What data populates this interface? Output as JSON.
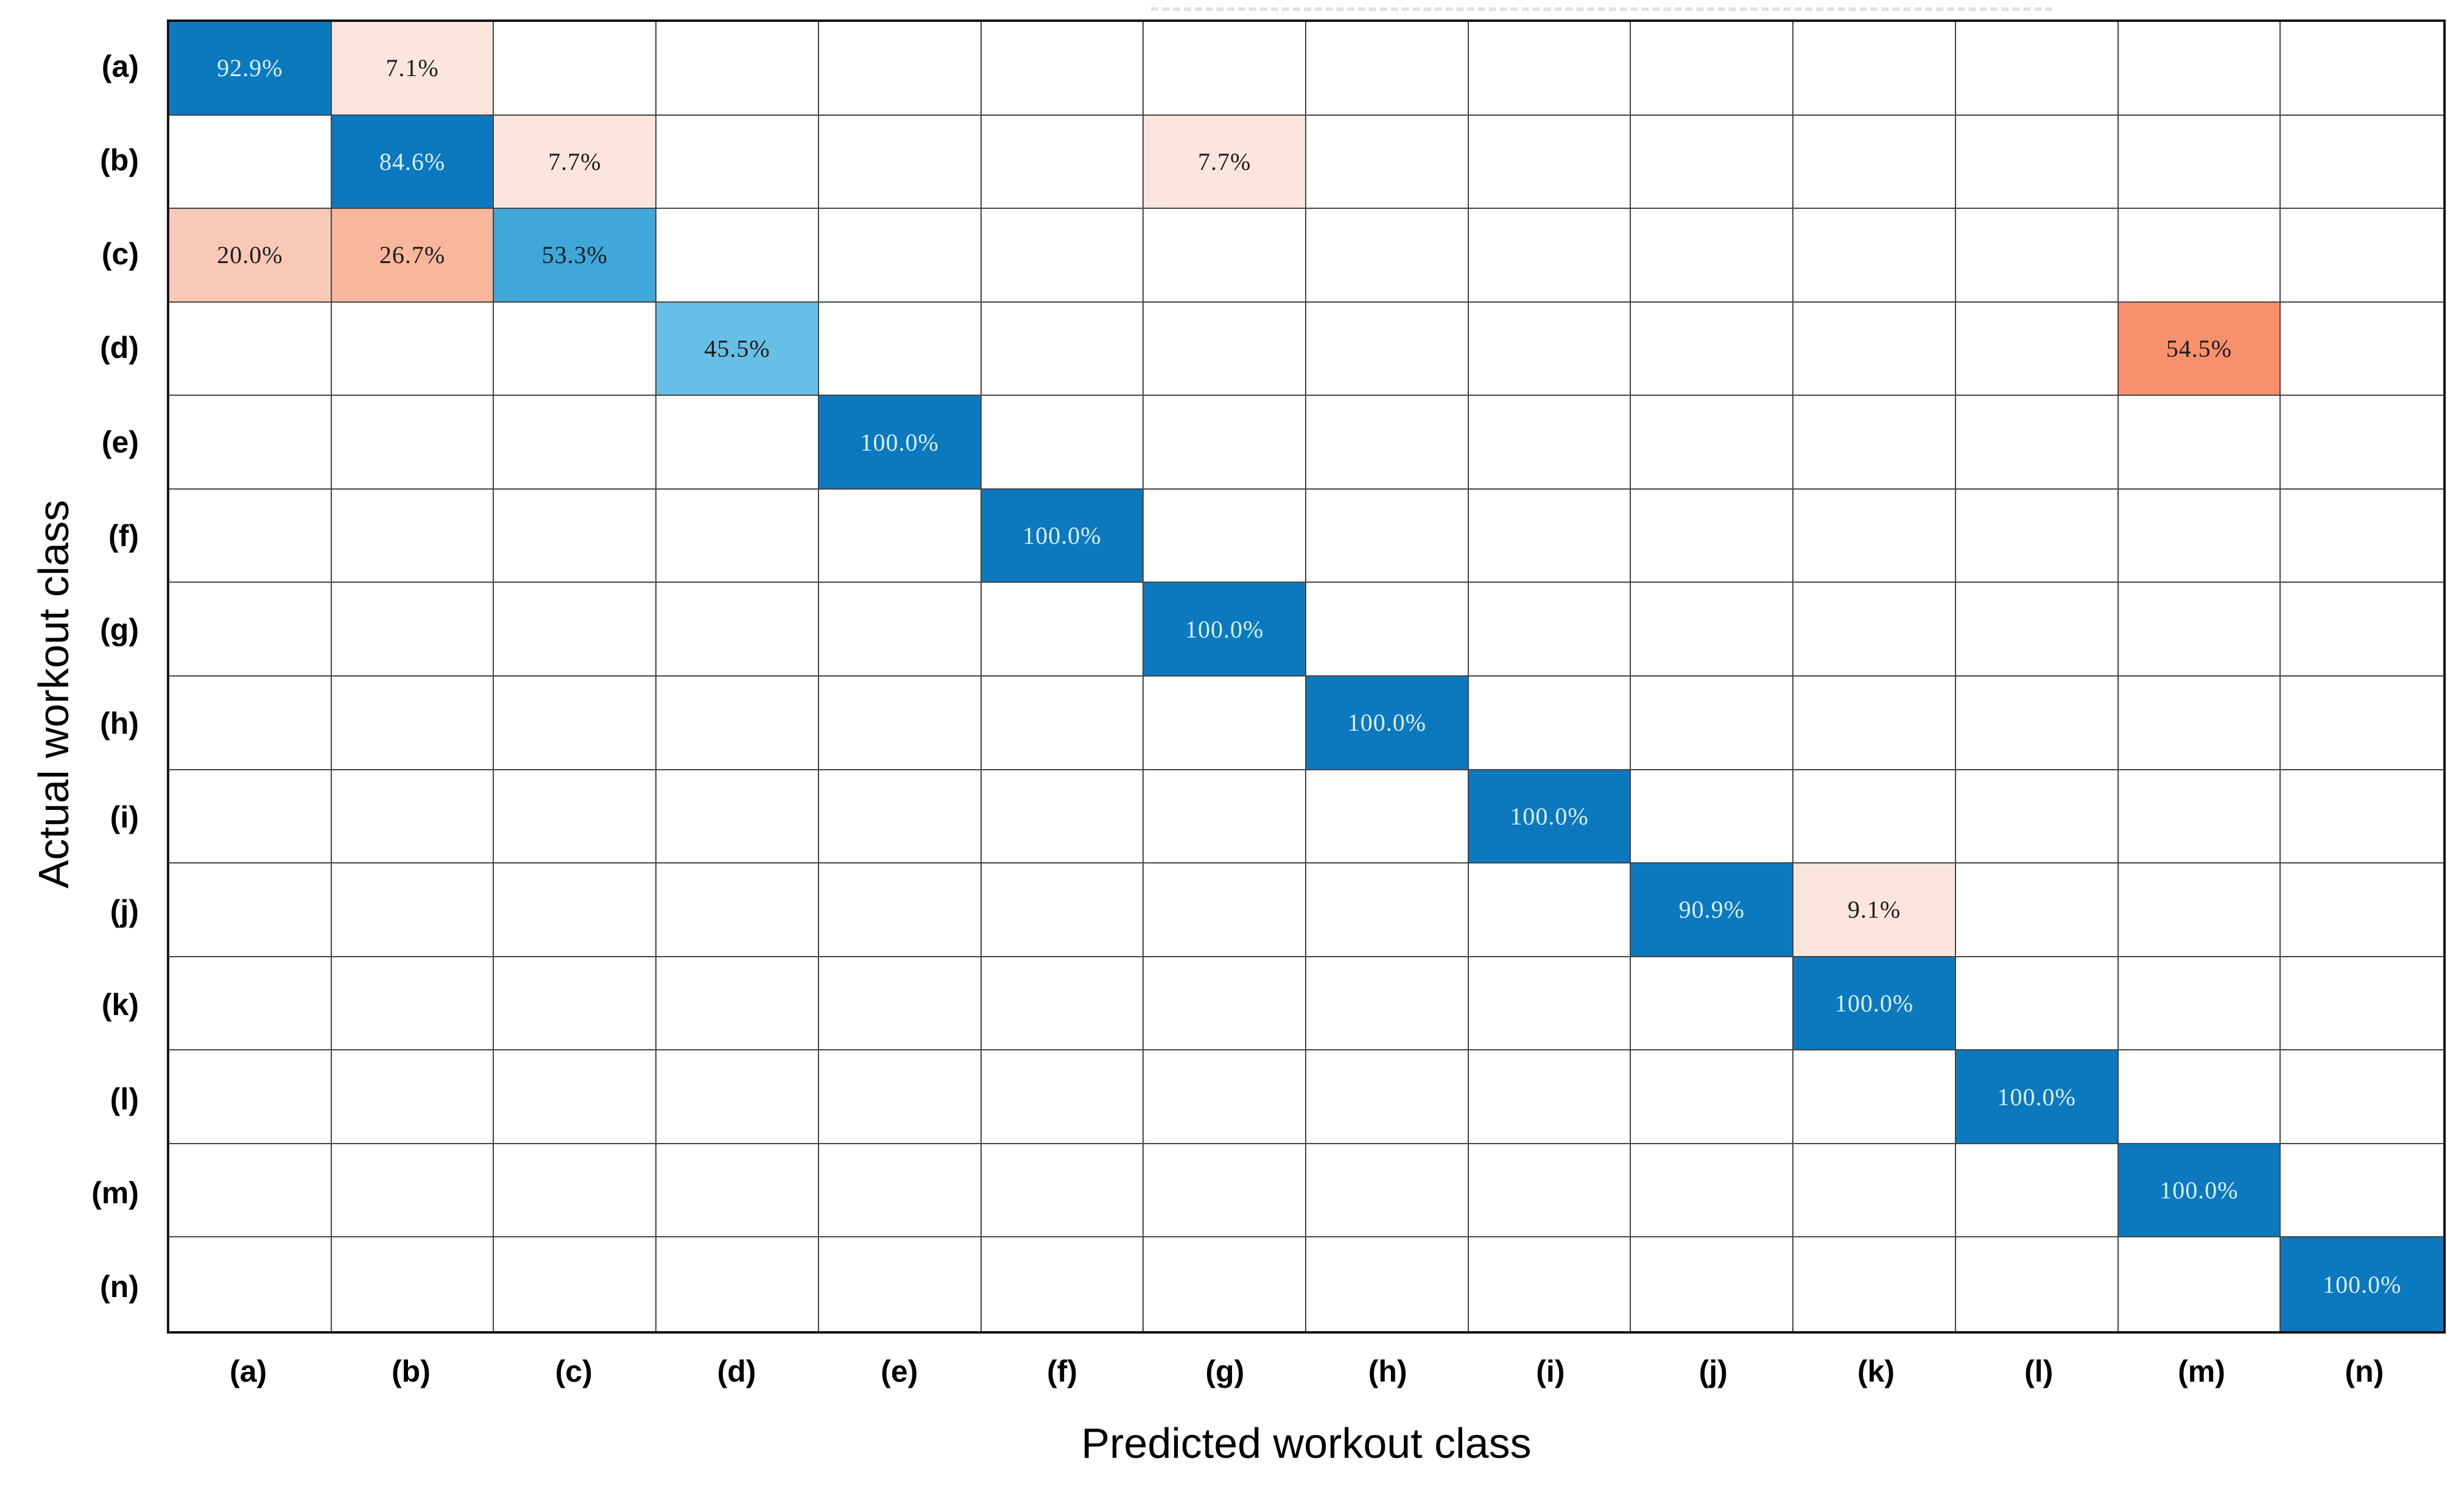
{
  "chart_data": {
    "type": "heatmap",
    "title": "",
    "xlabel": "Predicted workout class",
    "ylabel": "Actual workout class",
    "x_categories": [
      "(a)",
      "(b)",
      "(c)",
      "(d)",
      "(e)",
      "(f)",
      "(g)",
      "(h)",
      "(i)",
      "(j)",
      "(k)",
      "(l)",
      "(m)",
      "(n)"
    ],
    "y_categories": [
      "(a)",
      "(b)",
      "(c)",
      "(d)",
      "(e)",
      "(f)",
      "(g)",
      "(h)",
      "(i)",
      "(j)",
      "(k)",
      "(l)",
      "(m)",
      "(n)"
    ],
    "grid": {
      "rows": 14,
      "cols": 14,
      "grid_on": true
    },
    "value_unit": "%",
    "palette": {
      "diagonal_blue": "#0c79bf",
      "mid_blue": "#3fa7d9",
      "light_blue": "#66c0e5",
      "pale_pink": "#fbe5dc",
      "light_salmon": "#f9c9b6",
      "salmon": "#f8b69d",
      "strong_salmon": "#f9906d",
      "empty_cell": "#ffffff",
      "grid_line": "#454545",
      "text_on_dark": "#d8f1fb",
      "text_on_light": "#1c1c1c"
    },
    "cells": [
      {
        "row": "(a)",
        "col": "(a)",
        "value": 92.9,
        "label": "92.9%",
        "bg": "#0c79bf",
        "fg": "#d8f1fb"
      },
      {
        "row": "(a)",
        "col": "(b)",
        "value": 7.1,
        "label": "7.1%",
        "bg": "#fbe5dc",
        "fg": "#1c1c1c"
      },
      {
        "row": "(b)",
        "col": "(b)",
        "value": 84.6,
        "label": "84.6%",
        "bg": "#0c79bf",
        "fg": "#d8f1fb"
      },
      {
        "row": "(b)",
        "col": "(c)",
        "value": 7.7,
        "label": "7.7%",
        "bg": "#fbe5dc",
        "fg": "#1c1c1c"
      },
      {
        "row": "(b)",
        "col": "(g)",
        "value": 7.7,
        "label": "7.7%",
        "bg": "#fbe5dc",
        "fg": "#1c1c1c"
      },
      {
        "row": "(c)",
        "col": "(a)",
        "value": 20.0,
        "label": "20.0%",
        "bg": "#f9c9b6",
        "fg": "#1c1c1c"
      },
      {
        "row": "(c)",
        "col": "(b)",
        "value": 26.7,
        "label": "26.7%",
        "bg": "#f8b69d",
        "fg": "#1c1c1c"
      },
      {
        "row": "(c)",
        "col": "(c)",
        "value": 53.3,
        "label": "53.3%",
        "bg": "#3fa7d9",
        "fg": "#1c1c1c"
      },
      {
        "row": "(d)",
        "col": "(d)",
        "value": 45.5,
        "label": "45.5%",
        "bg": "#66c0e5",
        "fg": "#1c1c1c"
      },
      {
        "row": "(d)",
        "col": "(m)",
        "value": 54.5,
        "label": "54.5%",
        "bg": "#f9906d",
        "fg": "#1c1c1c"
      },
      {
        "row": "(e)",
        "col": "(e)",
        "value": 100.0,
        "label": "100.0%",
        "bg": "#0c79bf",
        "fg": "#d8f1fb"
      },
      {
        "row": "(f)",
        "col": "(f)",
        "value": 100.0,
        "label": "100.0%",
        "bg": "#0c79bf",
        "fg": "#d8f1fb"
      },
      {
        "row": "(g)",
        "col": "(g)",
        "value": 100.0,
        "label": "100.0%",
        "bg": "#0c79bf",
        "fg": "#d8f1fb"
      },
      {
        "row": "(h)",
        "col": "(h)",
        "value": 100.0,
        "label": "100.0%",
        "bg": "#0c79bf",
        "fg": "#d8f1fb"
      },
      {
        "row": "(i)",
        "col": "(i)",
        "value": 100.0,
        "label": "100.0%",
        "bg": "#0c79bf",
        "fg": "#d8f1fb"
      },
      {
        "row": "(j)",
        "col": "(j)",
        "value": 90.9,
        "label": "90.9%",
        "bg": "#0c79bf",
        "fg": "#d8f1fb"
      },
      {
        "row": "(j)",
        "col": "(k)",
        "value": 9.1,
        "label": "9.1%",
        "bg": "#fbe5dc",
        "fg": "#1c1c1c"
      },
      {
        "row": "(k)",
        "col": "(k)",
        "value": 100.0,
        "label": "100.0%",
        "bg": "#0c79bf",
        "fg": "#d8f1fb"
      },
      {
        "row": "(l)",
        "col": "(l)",
        "value": 100.0,
        "label": "100.0%",
        "bg": "#0c79bf",
        "fg": "#d8f1fb"
      },
      {
        "row": "(m)",
        "col": "(m)",
        "value": 100.0,
        "label": "100.0%",
        "bg": "#0c79bf",
        "fg": "#d8f1fb"
      },
      {
        "row": "(n)",
        "col": "(n)",
        "value": 100.0,
        "label": "100.0%",
        "bg": "#0c79bf",
        "fg": "#d8f1fb"
      }
    ]
  }
}
